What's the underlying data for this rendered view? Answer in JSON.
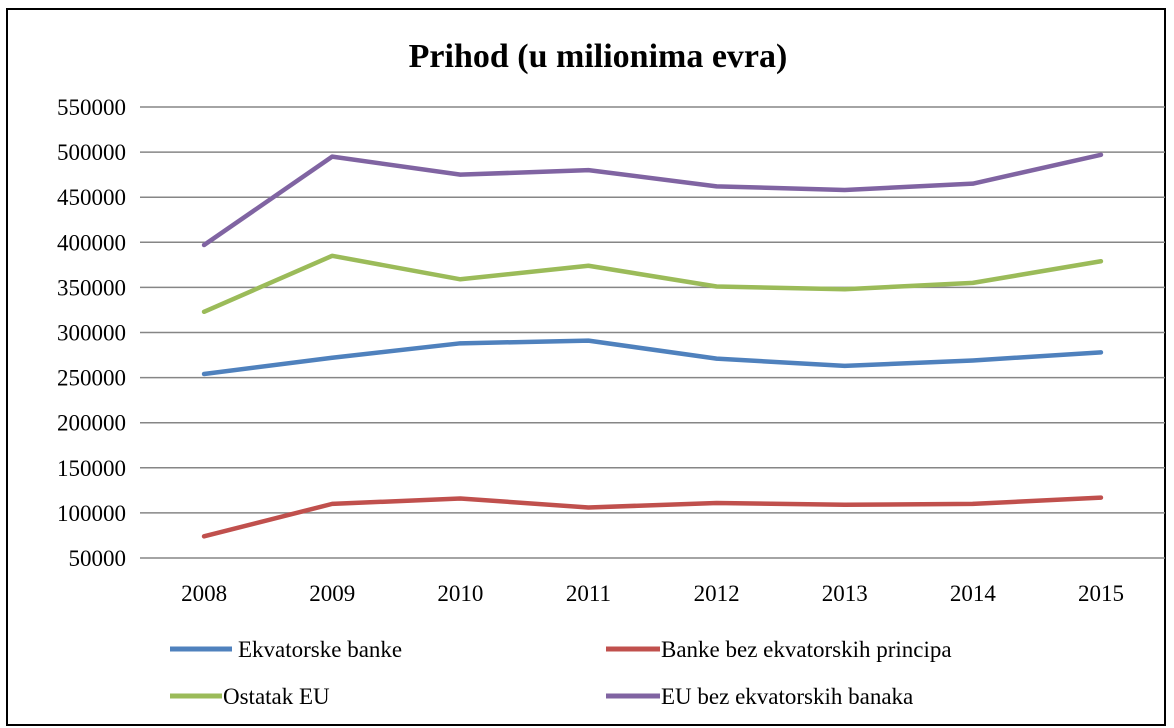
{
  "chart_data": {
    "type": "line",
    "title": "Prihod (u milionima evra)",
    "xlabel": "",
    "ylabel": "",
    "x": [
      "2008",
      "2009",
      "2010",
      "2011",
      "2012",
      "2013",
      "2014",
      "2015"
    ],
    "ylim": [
      50000,
      550000
    ],
    "yticks": [
      "50000",
      "100000",
      "150000",
      "200000",
      "250000",
      "300000",
      "350000",
      "400000",
      "450000",
      "500000",
      "550000"
    ],
    "grid": "horizontal",
    "legend_position": "bottom",
    "series": [
      {
        "name": "Ekvatorske banke",
        "color": "#4f81bd",
        "values": [
          254000,
          272000,
          288000,
          291000,
          271000,
          263000,
          269000,
          278000
        ]
      },
      {
        "name": "Banke bez ekvatorskih principa",
        "color": "#c0504d",
        "values": [
          74000,
          110000,
          116000,
          106000,
          111000,
          109000,
          110000,
          117000
        ]
      },
      {
        "name": "Ostatak EU",
        "color": "#9bbb59",
        "values": [
          323000,
          385000,
          359000,
          374000,
          351000,
          348000,
          355000,
          379000
        ]
      },
      {
        "name": "EU bez ekvatorskih banaka",
        "color": "#8064a2",
        "values": [
          397000,
          495000,
          475000,
          480000,
          462000,
          458000,
          465000,
          497000
        ]
      }
    ]
  }
}
